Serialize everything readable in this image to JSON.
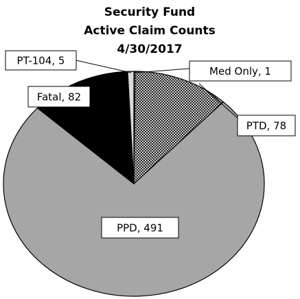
{
  "chart_data": {
    "type": "pie",
    "title": [
      "Security Fund",
      "Active Claim Counts",
      "4/30/2017"
    ],
    "categories": [
      "Med Only",
      "PTD",
      "PPD",
      "Fatal",
      "PT-104"
    ],
    "values": [
      1,
      78,
      491,
      82,
      5
    ],
    "value_labels": [
      "Med Only, 1",
      "PTD, 78",
      "PPD, 491",
      "Fatal, 82",
      "PT-104, 5"
    ],
    "colors": [
      "#bfbfbf",
      "#000000",
      "#a6a6a6",
      "#000000",
      "#d9d9d9"
    ],
    "fills": [
      "solid",
      "dots",
      "solid",
      "solid",
      "solid"
    ]
  }
}
